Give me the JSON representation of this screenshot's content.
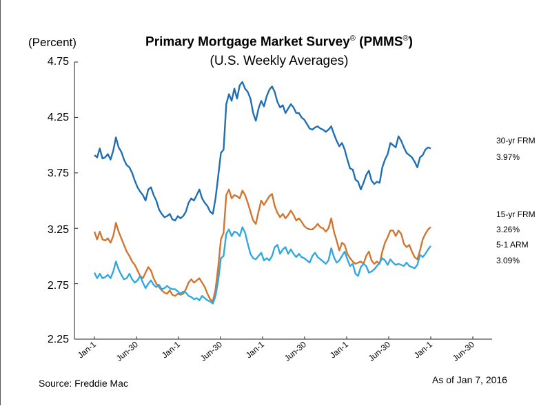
{
  "chart_data": {
    "type": "line",
    "title": "Primary Mortgage Market Survey",
    "title_reg": "®",
    "title_acronym_prefix": " (PMMS",
    "title_acronym_suffix": ")",
    "subtitle": "(U.S. Weekly Averages)",
    "ylabel": "(Percent)",
    "ylim": [
      2.25,
      4.75
    ],
    "yticks": [
      "4.75",
      "4.25",
      "3.75",
      "3.25",
      "2.75",
      "2.25"
    ],
    "xticklabels": [
      "Jan-1",
      "Jun-30",
      "Jan-1",
      "Jun-30",
      "Jan-1",
      "Jun-30",
      "Jan-1",
      "Jun-30",
      "Jan-1",
      "Jun-30"
    ],
    "series": [
      {
        "name": "30-yr FRM",
        "latest": "3.97%",
        "color": "#1f6fb5",
        "values": [
          3.91,
          3.89,
          3.97,
          3.88,
          3.89,
          3.92,
          3.87,
          3.95,
          4.07,
          3.98,
          3.94,
          3.87,
          3.82,
          3.8,
          3.75,
          3.68,
          3.62,
          3.58,
          3.55,
          3.5,
          3.6,
          3.62,
          3.55,
          3.5,
          3.42,
          3.38,
          3.35,
          3.36,
          3.38,
          3.33,
          3.32,
          3.36,
          3.34,
          3.36,
          3.4,
          3.48,
          3.52,
          3.5,
          3.55,
          3.6,
          3.52,
          3.48,
          3.45,
          3.4,
          3.38,
          3.52,
          3.72,
          3.93,
          3.96,
          4.37,
          4.46,
          4.4,
          4.51,
          4.42,
          4.54,
          4.57,
          4.51,
          4.48,
          4.42,
          4.29,
          4.22,
          4.33,
          4.4,
          4.35,
          4.44,
          4.5,
          4.53,
          4.48,
          4.39,
          4.34,
          4.36,
          4.29,
          4.33,
          4.37,
          4.34,
          4.29,
          4.29,
          4.25,
          4.23,
          4.19,
          4.15,
          4.14,
          4.16,
          4.17,
          4.15,
          4.14,
          4.12,
          4.14,
          4.17,
          4.1,
          4.04,
          3.99,
          4.02,
          3.96,
          3.87,
          3.79,
          3.78,
          3.69,
          3.67,
          3.6,
          3.66,
          3.73,
          3.77,
          3.68,
          3.65,
          3.67,
          3.66,
          3.8,
          3.87,
          3.92,
          4.02,
          4.0,
          3.98,
          4.08,
          4.04,
          3.98,
          3.93,
          3.91,
          3.89,
          3.85,
          3.8,
          3.89,
          3.91,
          3.96,
          3.98,
          3.97
        ]
      },
      {
        "name": "15-yr FRM",
        "latest": "3.26%",
        "color": "#d2762f",
        "values": [
          3.22,
          3.15,
          3.22,
          3.15,
          3.14,
          3.16,
          3.12,
          3.18,
          3.3,
          3.22,
          3.16,
          3.1,
          3.04,
          3.0,
          2.95,
          2.92,
          2.87,
          2.82,
          2.8,
          2.85,
          2.9,
          2.87,
          2.8,
          2.75,
          2.72,
          2.69,
          2.67,
          2.66,
          2.69,
          2.65,
          2.64,
          2.66,
          2.65,
          2.66,
          2.7,
          2.76,
          2.79,
          2.76,
          2.78,
          2.8,
          2.76,
          2.72,
          2.66,
          2.61,
          2.59,
          2.7,
          2.9,
          3.15,
          3.21,
          3.55,
          3.6,
          3.52,
          3.55,
          3.54,
          3.52,
          3.59,
          3.55,
          3.48,
          3.4,
          3.32,
          3.29,
          3.4,
          3.5,
          3.46,
          3.5,
          3.54,
          3.56,
          3.45,
          3.39,
          3.35,
          3.38,
          3.34,
          3.37,
          3.41,
          3.37,
          3.32,
          3.34,
          3.31,
          3.27,
          3.25,
          3.24,
          3.24,
          3.26,
          3.29,
          3.26,
          3.25,
          3.22,
          3.25,
          3.34,
          3.22,
          3.14,
          3.05,
          3.12,
          3.1,
          3.02,
          2.98,
          2.95,
          2.93,
          2.94,
          2.95,
          2.93,
          3.0,
          3.04,
          2.96,
          2.93,
          2.95,
          2.93,
          3.04,
          3.12,
          3.17,
          3.23,
          3.23,
          3.18,
          3.23,
          3.2,
          3.11,
          3.08,
          3.1,
          3.04,
          2.99,
          2.97,
          3.05,
          3.15,
          3.2,
          3.24,
          3.26
        ]
      },
      {
        "name": "5-1 ARM",
        "latest": "3.09%",
        "color": "#31a8df",
        "values": [
          2.85,
          2.8,
          2.84,
          2.8,
          2.81,
          2.83,
          2.8,
          2.86,
          2.95,
          2.88,
          2.83,
          2.79,
          2.8,
          2.84,
          2.79,
          2.76,
          2.78,
          2.82,
          2.76,
          2.71,
          2.75,
          2.78,
          2.74,
          2.72,
          2.74,
          2.7,
          2.71,
          2.73,
          2.71,
          2.7,
          2.7,
          2.68,
          2.66,
          2.68,
          2.67,
          2.64,
          2.63,
          2.61,
          2.62,
          2.6,
          2.64,
          2.62,
          2.6,
          2.59,
          2.57,
          2.64,
          2.78,
          2.98,
          3.0,
          3.2,
          3.24,
          3.18,
          3.22,
          3.21,
          3.18,
          3.26,
          3.21,
          3.11,
          3.02,
          2.98,
          2.97,
          3.0,
          3.03,
          2.96,
          2.98,
          2.96,
          3.0,
          3.08,
          3.1,
          3.02,
          3.06,
          3.08,
          3.02,
          3.06,
          3.02,
          2.99,
          3.02,
          2.99,
          2.98,
          2.96,
          2.94,
          3.0,
          3.03,
          2.99,
          2.97,
          2.95,
          2.93,
          2.96,
          3.07,
          2.99,
          2.94,
          2.96,
          3.0,
          3.04,
          2.97,
          2.91,
          2.93,
          2.84,
          2.82,
          2.9,
          2.93,
          2.91,
          2.85,
          2.86,
          2.88,
          2.91,
          2.94,
          2.98,
          2.96,
          2.92,
          2.97,
          2.94,
          2.92,
          2.93,
          2.92,
          2.91,
          2.94,
          2.91,
          2.9,
          2.89,
          2.92,
          3.01,
          2.99,
          3.02,
          3.06,
          3.09
        ]
      }
    ]
  },
  "footer": {
    "source": "Source: Freddie Mac",
    "as_of": "As of Jan 7, 2016"
  }
}
